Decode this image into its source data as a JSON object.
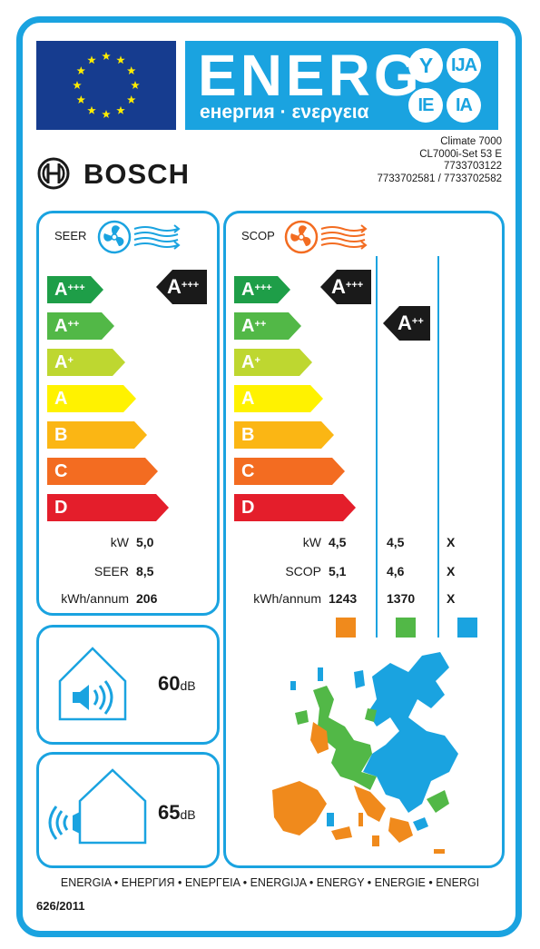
{
  "header": {
    "energ_big": "ENERG",
    "energ_sub": "енергия · ενεργεια",
    "lang_bubbles": [
      "Y",
      "IJA",
      "IE",
      "IA"
    ],
    "brand": "BOSCH",
    "model_lines": [
      "Climate 7000",
      "CL7000i-Set 53 E",
      "7733703122",
      "7733702581 / 7733702582"
    ]
  },
  "cooling": {
    "label": "SEER",
    "scale": [
      {
        "letter": "A",
        "sup": "+++",
        "color": "#1e9e48"
      },
      {
        "letter": "A",
        "sup": "++",
        "color": "#52b847"
      },
      {
        "letter": "A",
        "sup": "+",
        "color": "#bed730"
      },
      {
        "letter": "A",
        "sup": "",
        "color": "#fff200"
      },
      {
        "letter": "B",
        "sup": "",
        "color": "#fbb614"
      },
      {
        "letter": "C",
        "sup": "",
        "color": "#f36c21"
      },
      {
        "letter": "D",
        "sup": "",
        "color": "#e41e2b"
      }
    ],
    "rating": {
      "letter": "A",
      "sup": "+++"
    },
    "rows": [
      {
        "label": "kW",
        "value": "5,0"
      },
      {
        "label": "SEER",
        "value": "8,5"
      },
      {
        "label": "kWh/annum",
        "value": "206"
      }
    ]
  },
  "heating": {
    "label": "SCOP",
    "scale": [
      {
        "letter": "A",
        "sup": "+++",
        "color": "#1e9e48"
      },
      {
        "letter": "A",
        "sup": "++",
        "color": "#52b847"
      },
      {
        "letter": "A",
        "sup": "+",
        "color": "#bed730"
      },
      {
        "letter": "A",
        "sup": "",
        "color": "#fff200"
      },
      {
        "letter": "B",
        "sup": "",
        "color": "#fbb614"
      },
      {
        "letter": "C",
        "sup": "",
        "color": "#f36c21"
      },
      {
        "letter": "D",
        "sup": "",
        "color": "#e41e2b"
      }
    ],
    "ratings": [
      {
        "letter": "A",
        "sup": "+++"
      },
      {
        "letter": "A",
        "sup": "++"
      }
    ],
    "row_labels": [
      "kW",
      "SCOP",
      "kWh/annum"
    ],
    "columns": [
      {
        "values": [
          "4,5",
          "5,1",
          "1243"
        ],
        "swatch": "#f08a1c"
      },
      {
        "values": [
          "4,5",
          "4,6",
          "1370"
        ],
        "swatch": "#52b847"
      },
      {
        "values": [
          "X",
          "X",
          "X"
        ],
        "swatch": "#1aa3e0"
      }
    ]
  },
  "noise": {
    "indoor_value": "60",
    "outdoor_value": "65",
    "unit": "dB"
  },
  "footer": {
    "languages": "ENERGIA • ЕНЕРГИЯ • ΕΝΕΡΓΕΙΑ • ENERGIJA • ENERGY • ENERGIE • ENERGI",
    "regulation": "626/2011"
  },
  "colors": {
    "frame": "#1aa3e0",
    "eu_blue": "#163c8f",
    "eu_star": "#ffed00",
    "rating_badge": "#1a1a1a"
  }
}
